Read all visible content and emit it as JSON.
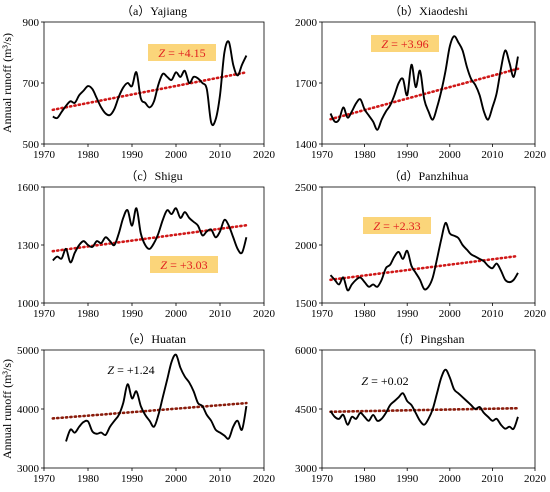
{
  "colors": {
    "series": "#000000",
    "trend": "#d01818",
    "trend_dark": "#8a1c0c",
    "z_box": "#fbd57a",
    "z_text_red": "#e02020",
    "z_text_black": "#000000"
  },
  "chart_data": [
    {
      "type": "line",
      "title": "（a）Yajiang",
      "ylabel": "Annual runoff (m³/s)",
      "xlim": [
        1970,
        2020
      ],
      "ylim": [
        500,
        900
      ],
      "xticks": [
        "1970",
        "1980",
        "1990",
        "2000",
        "2010",
        "2020"
      ],
      "yticks": [
        "500",
        "700",
        "900"
      ],
      "annotation": "Z = +4.15",
      "annotation_style": "highlight",
      "x": [
        1972,
        1973,
        1974,
        1975,
        1976,
        1977,
        1978,
        1979,
        1980,
        1981,
        1982,
        1983,
        1984,
        1985,
        1986,
        1987,
        1988,
        1989,
        1990,
        1991,
        1992,
        1993,
        1994,
        1995,
        1996,
        1997,
        1998,
        1999,
        2000,
        2001,
        2002,
        2003,
        2004,
        2005,
        2006,
        2007,
        2008,
        2009,
        2010,
        2011,
        2012,
        2013,
        2014,
        2015,
        2016
      ],
      "values": [
        590,
        585,
        605,
        625,
        640,
        635,
        660,
        675,
        690,
        680,
        650,
        620,
        600,
        595,
        615,
        655,
        685,
        700,
        690,
        735,
        650,
        635,
        620,
        640,
        695,
        730,
        720,
        710,
        735,
        720,
        740,
        700,
        720,
        715,
        700,
        680,
        570,
        580,
        660,
        800,
        835,
        760,
        725,
        760,
        790
      ],
      "trend": [
        [
          1972,
          612
        ],
        [
          2016,
          735
        ]
      ]
    },
    {
      "type": "line",
      "title": "（b）Xiaodeshi",
      "ylabel": "",
      "xlim": [
        1970,
        2020
      ],
      "ylim": [
        1400,
        2000
      ],
      "xticks": [
        "1970",
        "1980",
        "1990",
        "2000",
        "2010",
        "2020"
      ],
      "yticks": [
        "1400",
        "1700",
        "2000"
      ],
      "annotation": "Z = +3.96",
      "annotation_style": "highlight",
      "x": [
        1972,
        1973,
        1974,
        1975,
        1976,
        1977,
        1978,
        1979,
        1980,
        1981,
        1982,
        1983,
        1984,
        1985,
        1986,
        1987,
        1988,
        1989,
        1990,
        1991,
        1992,
        1993,
        1994,
        1995,
        1996,
        1997,
        1998,
        1999,
        2000,
        2001,
        2002,
        2003,
        2004,
        2005,
        2006,
        2007,
        2008,
        2009,
        2010,
        2011,
        2012,
        2013,
        2014,
        2015,
        2016
      ],
      "values": [
        1550,
        1510,
        1520,
        1580,
        1530,
        1560,
        1600,
        1620,
        1570,
        1540,
        1510,
        1470,
        1520,
        1560,
        1590,
        1640,
        1700,
        1720,
        1640,
        1790,
        1680,
        1760,
        1620,
        1560,
        1520,
        1580,
        1660,
        1760,
        1880,
        1930,
        1900,
        1860,
        1780,
        1720,
        1690,
        1640,
        1560,
        1520,
        1580,
        1650,
        1770,
        1860,
        1800,
        1730,
        1830
      ],
      "trend": [
        [
          1972,
          1522
        ],
        [
          2016,
          1770
        ]
      ]
    },
    {
      "type": "line",
      "title": "（c）Shigu",
      "ylabel": "",
      "xlim": [
        1970,
        2020
      ],
      "ylim": [
        1000,
        1600
      ],
      "xticks": [
        "1970",
        "1980",
        "1990",
        "2000",
        "2010",
        "2020"
      ],
      "yticks": [
        "1000",
        "1300",
        "1600"
      ],
      "annotation": "Z = +3.03",
      "annotation_style": "highlight",
      "x": [
        1972,
        1973,
        1974,
        1975,
        1976,
        1977,
        1978,
        1979,
        1980,
        1981,
        1982,
        1983,
        1984,
        1985,
        1986,
        1987,
        1988,
        1989,
        1990,
        1991,
        1992,
        1993,
        1994,
        1995,
        1996,
        1997,
        1998,
        1999,
        2000,
        2001,
        2002,
        2003,
        2004,
        2005,
        2006,
        2007,
        2008,
        2009,
        2010,
        2011,
        2012,
        2013,
        2014,
        2015,
        2016
      ],
      "values": [
        1220,
        1240,
        1230,
        1280,
        1210,
        1260,
        1300,
        1320,
        1300,
        1290,
        1320,
        1310,
        1340,
        1320,
        1300,
        1360,
        1440,
        1480,
        1400,
        1490,
        1360,
        1300,
        1280,
        1310,
        1360,
        1430,
        1480,
        1460,
        1490,
        1440,
        1470,
        1440,
        1420,
        1400,
        1350,
        1370,
        1380,
        1340,
        1370,
        1430,
        1400,
        1340,
        1280,
        1260,
        1340
      ],
      "trend": [
        [
          1972,
          1268
        ],
        [
          2016,
          1402
        ]
      ]
    },
    {
      "type": "line",
      "title": "（d）Panzhihua",
      "ylabel": "",
      "xlim": [
        1970,
        2020
      ],
      "ylim": [
        1500,
        2500
      ],
      "xticks": [
        "1970",
        "1980",
        "1990",
        "2000",
        "2010",
        "2020"
      ],
      "yticks": [
        "1500",
        "2000",
        "2500"
      ],
      "annotation": "Z = +2.33",
      "annotation_style": "highlight",
      "x": [
        1972,
        1973,
        1974,
        1975,
        1976,
        1977,
        1978,
        1979,
        1980,
        1981,
        1982,
        1983,
        1984,
        1985,
        1986,
        1987,
        1988,
        1989,
        1990,
        1991,
        1992,
        1993,
        1994,
        1995,
        1996,
        1997,
        1998,
        1999,
        2000,
        2001,
        2002,
        2003,
        2004,
        2005,
        2006,
        2007,
        2008,
        2009,
        2010,
        2011,
        2012,
        2013,
        2014,
        2015,
        2016
      ],
      "values": [
        1740,
        1700,
        1660,
        1720,
        1610,
        1660,
        1700,
        1720,
        1680,
        1640,
        1660,
        1640,
        1700,
        1800,
        1830,
        1900,
        1940,
        1880,
        1950,
        1820,
        1760,
        1700,
        1620,
        1640,
        1720,
        1880,
        2050,
        2190,
        2100,
        2080,
        2060,
        2000,
        1960,
        1920,
        1900,
        1880,
        1860,
        1820,
        1800,
        1840,
        1780,
        1700,
        1680,
        1700,
        1760
      ],
      "trend": [
        [
          1972,
          1700
        ],
        [
          2016,
          1905
        ]
      ]
    },
    {
      "type": "line",
      "title": "（e）Huatan",
      "ylabel": "Annual runoff (m³/s)",
      "xlim": [
        1970,
        2020
      ],
      "ylim": [
        3000,
        5000
      ],
      "xticks": [
        "1970",
        "1980",
        "1990",
        "2000",
        "2010",
        "2020"
      ],
      "yticks": [
        "3000",
        "4000",
        "5000"
      ],
      "annotation": "Z = +1.24",
      "annotation_style": "plain",
      "x": [
        1975,
        1976,
        1977,
        1978,
        1979,
        1980,
        1981,
        1982,
        1983,
        1984,
        1985,
        1986,
        1987,
        1988,
        1989,
        1990,
        1991,
        1992,
        1993,
        1994,
        1995,
        1996,
        1997,
        1998,
        1999,
        2000,
        2001,
        2002,
        2003,
        2004,
        2005,
        2006,
        2007,
        2008,
        2009,
        2010,
        2011,
        2012,
        2013,
        2014,
        2015,
        2016
      ],
      "values": [
        3450,
        3650,
        3600,
        3700,
        3780,
        3790,
        3620,
        3580,
        3600,
        3560,
        3700,
        3800,
        3900,
        4100,
        4420,
        4180,
        4300,
        4050,
        3900,
        3800,
        3700,
        3900,
        4200,
        4500,
        4800,
        4920,
        4700,
        4550,
        4450,
        4300,
        4100,
        4050,
        3900,
        3800,
        3650,
        3600,
        3550,
        3500,
        3700,
        3800,
        3650,
        4050
      ],
      "trend": [
        [
          1972,
          3840
        ],
        [
          2016,
          4100
        ]
      ]
    },
    {
      "type": "line",
      "title": "（f）Pingshan",
      "ylabel": "",
      "xlim": [
        1970,
        2020
      ],
      "ylim": [
        3000,
        6000
      ],
      "xticks": [
        "1970",
        "1980",
        "1990",
        "2000",
        "2010",
        "2020"
      ],
      "yticks": [
        "3000",
        "4500",
        "6000"
      ],
      "annotation": "Z = +0.02",
      "annotation_style": "plain",
      "x": [
        1972,
        1973,
        1974,
        1975,
        1976,
        1977,
        1978,
        1979,
        1980,
        1981,
        1982,
        1983,
        1984,
        1985,
        1986,
        1987,
        1988,
        1989,
        1990,
        1991,
        1992,
        1993,
        1994,
        1995,
        1996,
        1997,
        1998,
        1999,
        2000,
        2001,
        2002,
        2003,
        2004,
        2005,
        2006,
        2007,
        2008,
        2009,
        2010,
        2011,
        2012,
        2013,
        2014,
        2015,
        2016
      ],
      "values": [
        4450,
        4300,
        4250,
        4350,
        4100,
        4300,
        4250,
        4400,
        4300,
        4200,
        4350,
        4200,
        4250,
        4400,
        4600,
        4700,
        4800,
        4900,
        4700,
        4600,
        4400,
        4200,
        4100,
        4250,
        4500,
        4900,
        5300,
        5500,
        5300,
        5000,
        4900,
        4800,
        4700,
        4600,
        4500,
        4550,
        4400,
        4300,
        4200,
        4250,
        4100,
        4000,
        4050,
        4000,
        4300
      ],
      "trend": [
        [
          1972,
          4430
        ],
        [
          2016,
          4520
        ]
      ]
    }
  ]
}
